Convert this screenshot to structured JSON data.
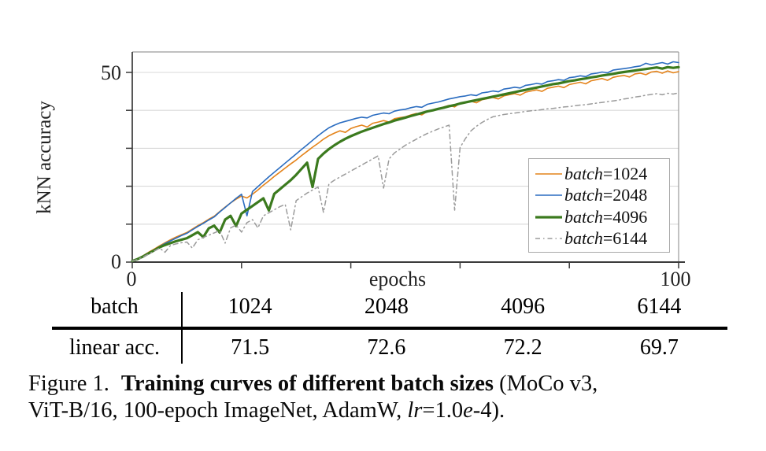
{
  "axis": {
    "ylabel": "kNN accuracy",
    "xlabel": "epochs",
    "y_max_label": "50",
    "y_min_label": "0",
    "x_min_label": "0",
    "x_max_label": "100"
  },
  "legend": {
    "items": [
      {
        "var": "batch",
        "eq": "=1024"
      },
      {
        "var": "batch",
        "eq": "=2048"
      },
      {
        "var": "batch",
        "eq": "=4096"
      },
      {
        "var": "batch",
        "eq": "=6144"
      }
    ]
  },
  "table": {
    "rows": [
      {
        "label": "batch",
        "values": [
          "1024",
          "2048",
          "4096",
          "6144"
        ]
      },
      {
        "label": "linear acc.",
        "values": [
          "71.5",
          "72.6",
          "72.2",
          "69.7"
        ]
      }
    ]
  },
  "figure": {
    "caption": {
      "label": "Figure 1.",
      "title_bold": "Training curves of different batch sizes",
      "after_title": " (MoCo v3,",
      "line2_start": "ViT-B/16, 100-epoch ImageNet, AdamW, ",
      "lr_var": "lr",
      "lr_eq": "=1.0",
      "e_var": "e",
      "line2_end": "-4)."
    }
  },
  "chart_data": {
    "type": "line",
    "title": "",
    "xlabel": "epochs",
    "ylabel": "kNN accuracy",
    "xlim": [
      0,
      100
    ],
    "ylim": [
      0,
      55.4
    ],
    "xticks": [
      0,
      20,
      40,
      60,
      80,
      100
    ],
    "yticks": [
      0,
      10,
      20,
      30,
      40,
      50
    ],
    "xtick_labels_shown": [
      "0",
      "100"
    ],
    "ytick_labels_shown": [
      "0",
      "50"
    ],
    "grid": "horizontal",
    "legend_position": "lower-right-inside",
    "x_step": 1,
    "series": [
      {
        "name": "batch=1024",
        "color": "#e4831a",
        "width": 1.6,
        "dash": null,
        "values": [
          0.3,
          0.9,
          1.7,
          2.6,
          3.4,
          4.3,
          5.1,
          5.9,
          6.6,
          7.2,
          7.8,
          8.7,
          9.6,
          10.4,
          11.3,
          12.1,
          13.3,
          14.5,
          15.6,
          16.6,
          17.4,
          16.9,
          17.9,
          19.0,
          20.3,
          21.4,
          22.6,
          23.7,
          24.8,
          25.9,
          26.9,
          28.1,
          29.2,
          30.3,
          31.3,
          32.4,
          33.3,
          34.0,
          34.6,
          34.2,
          35.2,
          35.7,
          36.1,
          35.6,
          36.6,
          36.9,
          37.3,
          36.9,
          37.8,
          38.1,
          38.3,
          38.8,
          39.2,
          38.8,
          39.7,
          40.1,
          40.4,
          40.9,
          41.3,
          40.9,
          41.9,
          42.2,
          42.4,
          42.0,
          42.8,
          43.1,
          43.4,
          43.0,
          43.8,
          44.1,
          44.4,
          44.0,
          44.8,
          45.1,
          45.4,
          45.0,
          45.8,
          46.1,
          46.4,
          46.0,
          46.8,
          47.1,
          47.4,
          47.0,
          47.8,
          48.1,
          48.4,
          47.9,
          48.7,
          49.0,
          49.2,
          48.8,
          49.6,
          49.8,
          49.4,
          50.1,
          50.3,
          49.8,
          50.4,
          49.9,
          50.2
        ]
      },
      {
        "name": "batch=2048",
        "color": "#2a6cc0",
        "width": 1.6,
        "dash": null,
        "values": [
          0.3,
          0.8,
          1.6,
          2.4,
          3.2,
          4.1,
          4.9,
          5.6,
          6.3,
          7.0,
          7.6,
          8.5,
          9.4,
          10.2,
          11.1,
          11.9,
          13.2,
          14.4,
          15.6,
          16.8,
          17.9,
          12.2,
          18.6,
          19.9,
          21.2,
          22.5,
          23.7,
          24.9,
          26.1,
          27.3,
          28.5,
          29.7,
          30.9,
          32.1,
          33.3,
          34.4,
          35.4,
          36.1,
          36.7,
          37.1,
          37.5,
          37.9,
          38.2,
          38.0,
          38.7,
          39.0,
          39.3,
          39.1,
          39.8,
          40.1,
          40.3,
          40.7,
          41.0,
          40.8,
          41.6,
          41.9,
          42.2,
          42.6,
          43.0,
          43.3,
          43.6,
          43.8,
          44.1,
          43.9,
          44.6,
          44.8,
          45.1,
          44.9,
          45.6,
          45.8,
          46.1,
          45.9,
          46.6,
          46.8,
          47.1,
          46.9,
          47.6,
          47.8,
          48.1,
          47.9,
          48.6,
          48.8,
          49.1,
          48.9,
          49.6,
          49.8,
          50.1,
          49.9,
          50.6,
          50.8,
          51.0,
          51.2,
          51.5,
          51.7,
          52.4,
          52.0,
          52.3,
          52.6,
          52.2,
          52.8,
          52.6
        ]
      },
      {
        "name": "batch=4096",
        "color": "#3b7a1e",
        "width": 3.2,
        "dash": null,
        "values": [
          0.3,
          0.8,
          1.5,
          2.3,
          3.1,
          3.9,
          4.5,
          5.0,
          5.5,
          5.9,
          6.3,
          7.1,
          7.9,
          6.6,
          8.9,
          9.6,
          7.8,
          11.2,
          12.2,
          9.5,
          12.8,
          13.8,
          14.8,
          15.8,
          16.8,
          13.6,
          18.0,
          19.2,
          20.4,
          21.6,
          23.0,
          24.6,
          26.2,
          19.8,
          27.2,
          28.6,
          29.8,
          30.8,
          31.7,
          32.5,
          33.2,
          33.8,
          34.4,
          34.9,
          35.4,
          35.9,
          36.4,
          36.8,
          37.3,
          37.7,
          38.1,
          38.5,
          38.9,
          39.3,
          39.7,
          40.0,
          40.4,
          40.7,
          41.1,
          41.4,
          41.8,
          42.1,
          42.4,
          42.7,
          43.0,
          43.3,
          43.6,
          43.9,
          44.2,
          44.5,
          44.8,
          45.1,
          45.4,
          45.7,
          46.0,
          46.3,
          46.6,
          46.9,
          47.1,
          47.4,
          47.7,
          47.9,
          48.2,
          48.4,
          48.7,
          48.9,
          49.2,
          49.4,
          49.6,
          49.9,
          50.1,
          50.3,
          50.5,
          50.7,
          50.9,
          51.1,
          51.3,
          51.0,
          51.4,
          51.2,
          51.4
        ]
      },
      {
        "name": "batch=6144",
        "color": "#9b9b9b",
        "width": 1.5,
        "dash": "6 4 1.5 4",
        "values": [
          0.3,
          0.7,
          1.4,
          2.1,
          2.9,
          3.7,
          2.6,
          4.4,
          4.8,
          5.1,
          5.3,
          3.7,
          5.9,
          6.5,
          7.1,
          7.7,
          8.3,
          5.0,
          9.0,
          9.8,
          7.9,
          10.4,
          11.2,
          9.0,
          12.2,
          13.0,
          13.8,
          14.6,
          15.2,
          8.5,
          16.2,
          17.2,
          18.2,
          19.0,
          19.8,
          13.1,
          20.6,
          21.6,
          22.4,
          23.2,
          24.0,
          24.8,
          25.6,
          26.4,
          27.2,
          28.0,
          19.5,
          27.2,
          28.8,
          29.8,
          30.8,
          31.6,
          32.4,
          33.2,
          33.9,
          34.5,
          35.1,
          35.6,
          36.1,
          13.7,
          30.2,
          32.6,
          34.6,
          35.8,
          36.8,
          37.6,
          38.3,
          38.6,
          38.9,
          39.1,
          39.3,
          39.5,
          39.7,
          39.9,
          40.0,
          40.2,
          40.4,
          40.5,
          40.7,
          40.9,
          41.0,
          41.2,
          41.4,
          41.5,
          41.7,
          41.9,
          42.1,
          42.3,
          42.5,
          42.7,
          43.0,
          43.2,
          43.5,
          43.7,
          44.0,
          44.2,
          44.4,
          44.1,
          44.5,
          44.3,
          44.6
        ]
      }
    ]
  }
}
